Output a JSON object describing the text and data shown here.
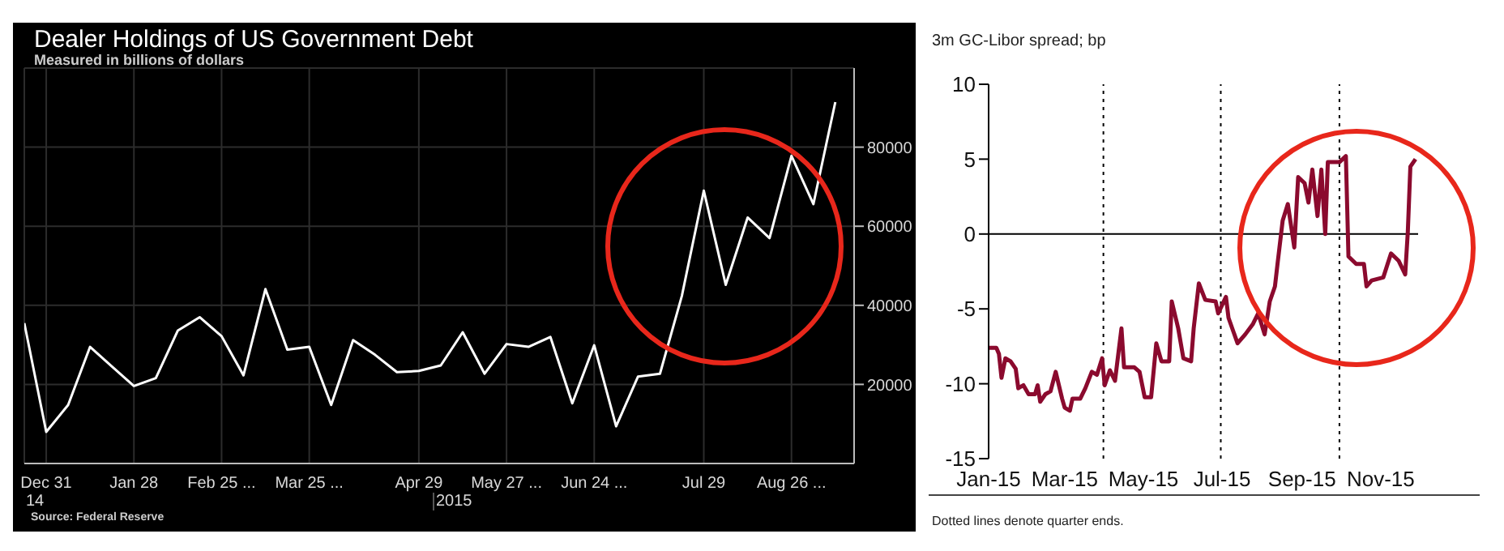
{
  "chart_data": [
    {
      "type": "line",
      "title": "Dealer Holdings of US Government Debt",
      "subtitle": "Measured in billions of dollars",
      "x": [
        "2014-12-24",
        "2014-12-31",
        "2015-01-07",
        "2015-01-14",
        "2015-01-21",
        "2015-01-28",
        "2015-02-04",
        "2015-02-11",
        "2015-02-18",
        "2015-02-25",
        "2015-03-04",
        "2015-03-11",
        "2015-03-18",
        "2015-03-25",
        "2015-04-01",
        "2015-04-08",
        "2015-04-15",
        "2015-04-22",
        "2015-04-29",
        "2015-05-06",
        "2015-05-13",
        "2015-05-20",
        "2015-05-27",
        "2015-06-03",
        "2015-06-10",
        "2015-06-17",
        "2015-06-24",
        "2015-07-01",
        "2015-07-08",
        "2015-07-15",
        "2015-07-22",
        "2015-07-29",
        "2015-08-05",
        "2015-08-12",
        "2015-08-19",
        "2015-08-26",
        "2015-09-02",
        "2015-09-09"
      ],
      "series": [
        {
          "color": "#ffffff",
          "values": [
            35500,
            8000,
            14800,
            29500,
            24500,
            19600,
            21600,
            33600,
            37000,
            32200,
            22300,
            44100,
            28800,
            29500,
            14800,
            31200,
            27500,
            23100,
            23400,
            24800,
            33200,
            22700,
            30200,
            29500,
            32000,
            15200,
            29900,
            9400,
            22000,
            22700,
            42400,
            69000,
            45200,
            62200,
            57000,
            77800,
            65600,
            91400
          ]
        }
      ],
      "xlim": [
        "2014-12-24",
        "2015-09-15"
      ],
      "xticks": [
        {
          "value": "2014-12-31",
          "label": "Dec 31"
        },
        {
          "value": "2015-01-28",
          "label": "Jan 28"
        },
        {
          "value": "2015-02-25",
          "label": "Feb 25 ..."
        },
        {
          "value": "2015-03-25",
          "label": "Mar 25 ..."
        },
        {
          "value": "2015-04-29",
          "label": "Apr 29"
        },
        {
          "value": "2015-05-27",
          "label": "May 27 ..."
        },
        {
          "value": "2015-06-24",
          "label": "Jun 24 ..."
        },
        {
          "value": "2015-07-29",
          "label": "Jul 29"
        },
        {
          "value": "2015-08-26",
          "label": "Aug 26 ..."
        }
      ],
      "ylim": [
        0,
        100000
      ],
      "yticks": [
        20000,
        40000,
        60000,
        80000
      ],
      "grid": true,
      "annotations": [
        "14",
        "2015",
        "Source: Federal Reserve"
      ]
    },
    {
      "type": "line",
      "title": "3m GC-Libor spread; bp",
      "x": [
        "2015-01-01",
        "2015-01-07",
        "2015-01-09",
        "2015-01-11",
        "2015-01-14",
        "2015-01-18",
        "2015-01-22",
        "2015-01-24",
        "2015-01-28",
        "2015-02-01",
        "2015-02-06",
        "2015-02-08",
        "2015-02-10",
        "2015-02-14",
        "2015-02-18",
        "2015-02-22",
        "2015-02-27",
        "2015-03-01",
        "2015-03-05",
        "2015-03-07",
        "2015-03-13",
        "2015-03-17",
        "2015-03-22",
        "2015-03-26",
        "2015-03-30",
        "2015-04-01",
        "2015-04-05",
        "2015-04-09",
        "2015-04-14",
        "2015-04-16",
        "2015-04-24",
        "2015-04-28",
        "2015-05-02",
        "2015-05-07",
        "2015-05-11",
        "2015-05-15",
        "2015-05-21",
        "2015-05-23",
        "2015-05-28",
        "2015-06-01",
        "2015-06-07",
        "2015-06-09",
        "2015-06-13",
        "2015-06-18",
        "2015-06-26",
        "2015-06-28",
        "2015-07-04",
        "2015-07-06",
        "2015-07-13",
        "2015-07-19",
        "2015-07-25",
        "2015-07-29",
        "2015-08-03",
        "2015-08-07",
        "2015-08-11",
        "2015-08-13",
        "2015-08-17",
        "2015-08-21",
        "2015-08-26",
        "2015-08-29",
        "2015-09-03",
        "2015-09-06",
        "2015-09-09",
        "2015-09-13",
        "2015-09-16",
        "2015-09-19",
        "2015-09-21",
        "2015-09-30",
        "2015-10-05",
        "2015-10-07",
        "2015-10-13",
        "2015-10-19",
        "2015-10-21",
        "2015-10-25",
        "2015-11-03",
        "2015-11-09",
        "2015-11-15",
        "2015-11-20",
        "2015-11-22",
        "2015-11-24",
        "2015-11-28"
      ],
      "series": [
        {
          "color": "#8b0a2e",
          "values": [
            -7.6,
            -7.6,
            -8,
            -9.6,
            -8.3,
            -8.5,
            -9,
            -10.3,
            -10.1,
            -10.7,
            -10.7,
            -10.1,
            -11.2,
            -10.7,
            -10.5,
            -9.2,
            -11,
            -11.6,
            -11.8,
            -11,
            -11,
            -10.3,
            -9.2,
            -9.4,
            -8.3,
            -10.1,
            -9.1,
            -9.8,
            -6.3,
            -8.9,
            -8.9,
            -9.2,
            -10.9,
            -10.9,
            -7.3,
            -8.5,
            -8.5,
            -4.5,
            -6.3,
            -8.3,
            -8.5,
            -6.3,
            -3.3,
            -4.4,
            -4.5,
            -5.3,
            -4.2,
            -5.6,
            -7.3,
            -6.7,
            -6,
            -5.3,
            -6.7,
            -4.5,
            -3.5,
            -2,
            0.9,
            2,
            -0.9,
            3.8,
            3.4,
            2.1,
            4.3,
            1.2,
            4.3,
            0,
            4.8,
            4.8,
            5.2,
            -1.5,
            -2,
            -2,
            -3.5,
            -3.1,
            -2.9,
            -1.3,
            -1.8,
            -2.7,
            0.1,
            4.5,
            5
          ]
        }
      ],
      "xlim": [
        "2015-01-01",
        "2015-11-30"
      ],
      "xticks": [
        {
          "value": "2015-01-01",
          "label": "Jan-15"
        },
        {
          "value": "2015-03-01",
          "label": "Mar-15"
        },
        {
          "value": "2015-05-01",
          "label": "May-15"
        },
        {
          "value": "2015-07-01",
          "label": "Jul-15"
        },
        {
          "value": "2015-09-01",
          "label": "Sep-15"
        },
        {
          "value": "2015-11-01",
          "label": "Nov-15"
        }
      ],
      "ylim": [
        -15,
        10
      ],
      "yticks": [
        -15,
        -10,
        -5,
        0,
        5,
        10
      ],
      "ref_lines": [
        {
          "axis": "y",
          "value": 0,
          "color": "#000000",
          "line_style": "solid"
        },
        {
          "axis": "x",
          "value": "2015-03-31",
          "color": "#000000",
          "line_style": "dotted"
        },
        {
          "axis": "x",
          "value": "2015-06-30",
          "color": "#000000",
          "line_style": "dotted"
        },
        {
          "axis": "x",
          "value": "2015-09-30",
          "color": "#000000",
          "line_style": "dotted"
        }
      ],
      "annotations": [
        "Dotted lines denote quarter ends."
      ]
    }
  ]
}
